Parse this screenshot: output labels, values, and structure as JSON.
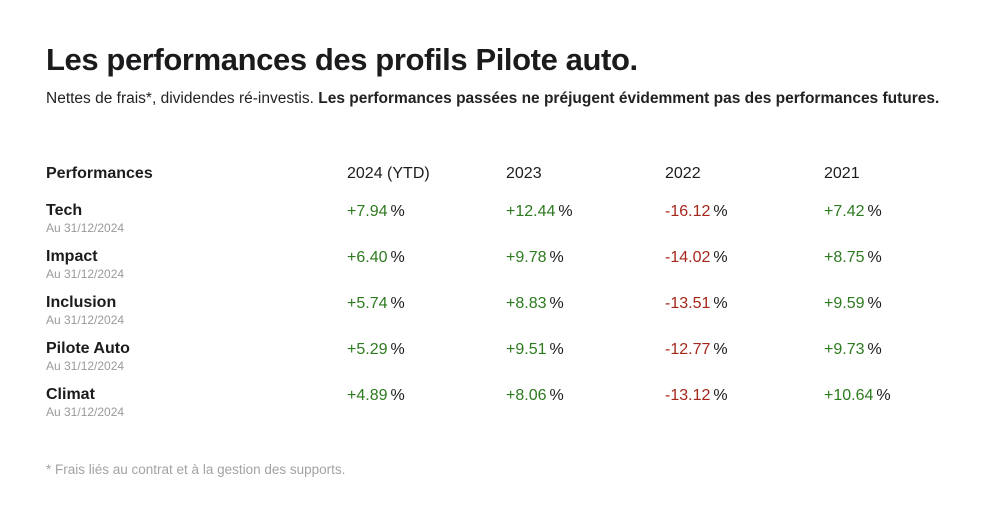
{
  "header": {
    "title": "Les performances des profils Pilote auto.",
    "subtitle_plain": "Nettes de frais*, dividendes ré-investis. ",
    "subtitle_bold": "Les performances passées ne préjugent évidemment pas des performances futures."
  },
  "table": {
    "columns": [
      "Performances",
      "2024 (YTD)",
      "2023",
      "2022",
      "2021"
    ],
    "rows": [
      {
        "name": "Tech",
        "date": "Au 31/12/2024",
        "values": [
          "+7.94",
          "+12.44",
          "-16.12",
          "+7.42"
        ]
      },
      {
        "name": "Impact",
        "date": "Au 31/12/2024",
        "values": [
          "+6.40",
          "+9.78",
          "-14.02",
          "+8.75"
        ]
      },
      {
        "name": "Inclusion",
        "date": "Au 31/12/2024",
        "values": [
          "+5.74",
          "+8.83",
          "-13.51",
          "+9.59"
        ]
      },
      {
        "name": "Pilote Auto",
        "date": "Au 31/12/2024",
        "values": [
          "+5.29",
          "+9.51",
          "-12.77",
          "+9.73"
        ]
      },
      {
        "name": "Climat",
        "date": "Au 31/12/2024",
        "values": [
          "+4.89",
          "+8.06",
          "-13.12",
          "+10.64"
        ]
      }
    ],
    "unit": "%"
  },
  "footnote": "* Frais liés au contrat et à la gestion des supports.",
  "colors": {
    "positive": "#2d7a1f",
    "negative": "#a5271a",
    "text": "#1b1b1d",
    "muted": "#9a9a9a"
  }
}
